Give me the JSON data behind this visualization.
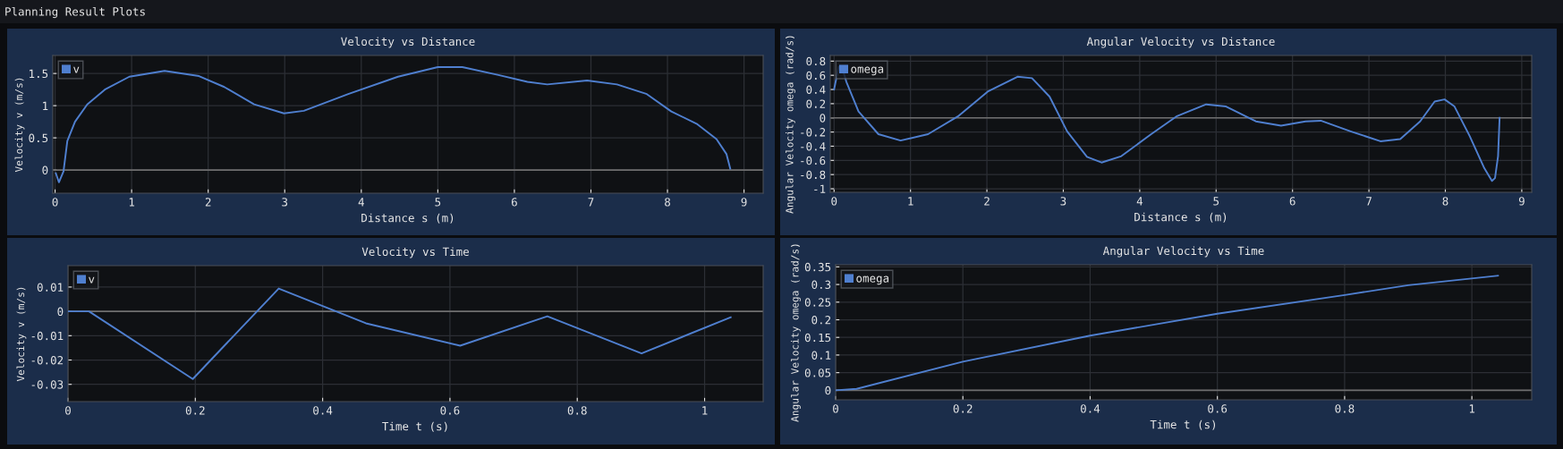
{
  "chart_data": [
    {
      "type": "line",
      "title": "Velocity vs Distance",
      "xlabel": "Distance s (m)",
      "ylabel": "Velocity v (m/s)",
      "annotations": [
        "Planning Result Plots"
      ],
      "x": [
        0.01,
        0.05,
        0.11,
        0.16,
        0.26,
        0.42,
        0.65,
        0.97,
        1.43,
        1.88,
        2.21,
        2.6,
        2.99,
        3.25,
        3.83,
        4.48,
        5.0,
        5.32,
        5.78,
        6.17,
        6.43,
        6.95,
        7.34,
        7.73,
        8.05,
        8.38,
        8.64,
        8.77,
        8.82
      ],
      "series": [
        {
          "name": "v",
          "color": "#4f7fcf",
          "values": [
            -0.05,
            -0.19,
            -0.02,
            0.45,
            0.75,
            1.02,
            1.25,
            1.45,
            1.54,
            1.46,
            1.29,
            1.02,
            0.88,
            0.92,
            1.18,
            1.45,
            1.6,
            1.6,
            1.48,
            1.37,
            1.33,
            1.39,
            1.33,
            1.18,
            0.91,
            0.72,
            0.48,
            0.25,
            0.02
          ]
        }
      ],
      "xlim": [
        -0.03,
        9.25
      ],
      "xticks": [
        0,
        1,
        2,
        3,
        4,
        5,
        6,
        7,
        8,
        9
      ],
      "ylim": [
        -0.36,
        1.78
      ],
      "yticks": [
        0,
        0.5,
        1,
        1.5
      ],
      "ref_lines": [
        {
          "axis": "y",
          "value": 0,
          "color": "#6e6e6e"
        }
      ],
      "grid": true,
      "legend": "top left"
    },
    {
      "type": "line",
      "title": "Angular Velocity vs Distance",
      "xlabel": "Distance s (m)",
      "ylabel": "Angular Velocity omega (rad/s)",
      "x": [
        0.0,
        0.06,
        0.1,
        0.16,
        0.32,
        0.58,
        0.87,
        1.23,
        1.62,
        2.01,
        2.4,
        2.59,
        2.82,
        3.05,
        3.31,
        3.5,
        3.76,
        4.15,
        4.48,
        4.87,
        5.13,
        5.52,
        5.85,
        6.17,
        6.37,
        6.76,
        7.15,
        7.41,
        7.67,
        7.86,
        7.99,
        8.12,
        8.32,
        8.51,
        8.61,
        8.65,
        8.69,
        8.71
      ],
      "series": [
        {
          "name": "omega",
          "color": "#4f7fcf",
          "values": [
            0.4,
            0.72,
            0.73,
            0.51,
            0.09,
            -0.23,
            -0.32,
            -0.23,
            0.02,
            0.37,
            0.58,
            0.56,
            0.3,
            -0.19,
            -0.55,
            -0.63,
            -0.54,
            -0.23,
            0.02,
            0.19,
            0.16,
            -0.05,
            -0.11,
            -0.05,
            -0.04,
            -0.19,
            -0.33,
            -0.3,
            -0.05,
            0.23,
            0.26,
            0.16,
            -0.26,
            -0.71,
            -0.89,
            -0.85,
            -0.54,
            0.0
          ]
        }
      ],
      "xlim": [
        -0.05,
        9.13
      ],
      "xticks": [
        0,
        1,
        2,
        3,
        4,
        5,
        6,
        7,
        8,
        9
      ],
      "ylim": [
        -1.05,
        0.88
      ],
      "yticks": [
        -1,
        -0.8,
        -0.6,
        -0.4,
        -0.2,
        0,
        0.2,
        0.4,
        0.6,
        0.8
      ],
      "ref_lines": [
        {
          "axis": "y",
          "value": 0,
          "color": "#6e6e6e"
        }
      ],
      "grid": true,
      "legend": "top left"
    },
    {
      "type": "line",
      "title": "Velocity vs Time",
      "xlabel": "Time t (s)",
      "ylabel": "Velocity v (m/s)",
      "x": [
        0,
        0.033,
        0.196,
        0.331,
        0.468,
        0.616,
        0.753,
        0.901,
        1.041
      ],
      "series": [
        {
          "name": "v",
          "color": "#4f7fcf",
          "values": [
            0,
            0,
            -0.0278,
            0.0094,
            -0.0049,
            -0.0141,
            -0.002,
            -0.0173,
            -0.0024
          ]
        }
      ],
      "xlim": [
        0,
        1.092
      ],
      "xticks": [
        0,
        0.2,
        0.4,
        0.6,
        0.8,
        1
      ],
      "ylim": [
        -0.0371,
        0.0188
      ],
      "yticks": [
        -0.03,
        -0.02,
        -0.01,
        0,
        0.01
      ],
      "ref_lines": [
        {
          "axis": "y",
          "value": 0,
          "color": "#6e6e6e"
        }
      ],
      "grid": true,
      "legend": "top left"
    },
    {
      "type": "line",
      "title": "Angular Velocity vs Time",
      "xlabel": "Time t (s)",
      "ylabel": "Angular Velocity omega (rad/s)",
      "x": [
        0,
        0.033,
        0.2,
        0.4,
        0.6,
        0.8,
        0.9,
        1.041
      ],
      "series": [
        {
          "name": "omega",
          "color": "#4f7fcf",
          "values": [
            0,
            0.004,
            0.081,
            0.155,
            0.217,
            0.27,
            0.298,
            0.325
          ]
        }
      ],
      "xlim": [
        0,
        1.094
      ],
      "xticks": [
        0,
        0.2,
        0.4,
        0.6,
        0.8,
        1
      ],
      "ylim": [
        -0.027,
        0.356
      ],
      "yticks": [
        0,
        0.05,
        0.1,
        0.15,
        0.2,
        0.25,
        0.3,
        0.35
      ],
      "ref_lines": [
        {
          "axis": "y",
          "value": 0,
          "color": "#6e6e6e"
        }
      ],
      "grid": true,
      "legend": "top left"
    }
  ]
}
